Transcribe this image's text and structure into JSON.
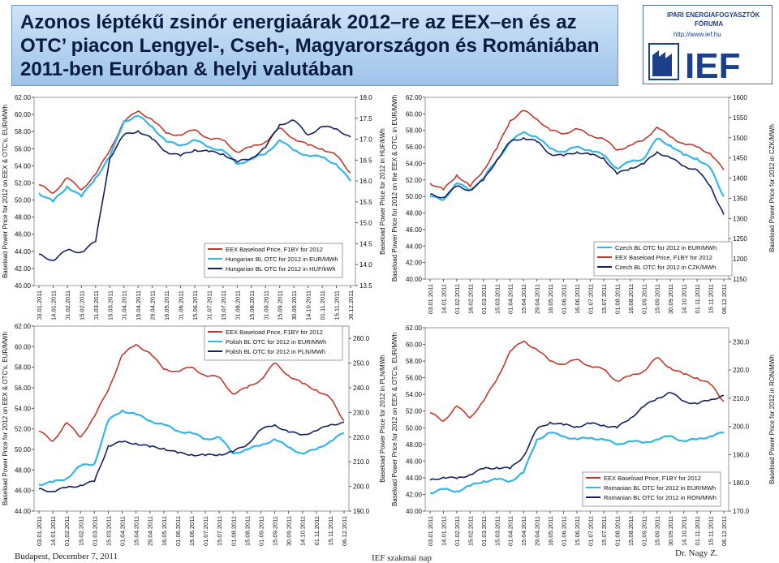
{
  "title": "Azonos léptékű zsinór energiaárak 2012–re az EEX–en és az OTC’ piacon Lengyel-, Cseh-, Magyarországon és Romániában 2011-ben Euróban & helyi valutában",
  "logo": {
    "line1": "IPARI ENERGIAFOGYASZTÓK",
    "line2": "FÓRUMA",
    "url": "http://www.ief.hu",
    "mark": "IEF"
  },
  "footer": {
    "left": "Budapest, December 7, 2011",
    "center": "IEF szakmai nap",
    "right": "Dr. Nagy Z."
  },
  "colors": {
    "eex": "#c0392b",
    "otc_eur": "#35b5e8",
    "otc_local": "#15205e"
  },
  "chart_data": [
    {
      "type": "line",
      "panel": "Hungary",
      "x": [
        "03.01.2011",
        "14.01.2011",
        "01.02.2011",
        "15.02.2011",
        "01.03.2011",
        "15.03.2011",
        "01.04.2011",
        "15.04.2011",
        "29.04.2011",
        "16.05.2011",
        "01.06.2011",
        "15.06.2011",
        "01.07.2011",
        "15.07.2011",
        "01.08.2011",
        "15.08.2011",
        "01.09.2011",
        "15.09.2011",
        "30.09.2011",
        "14.10.2011",
        "01.11.2011",
        "15.11.2011",
        "06.12.2011"
      ],
      "ylabel": "Baseload Power Price for 2012 on EEX & OTC's, EUR/MWh",
      "y2label": "Baseload Power Price for 2012 in HUF/kWh",
      "ylim": [
        40,
        62
      ],
      "y2lim": [
        13.5,
        18.0
      ],
      "yticks": [
        "40.00",
        "42.00",
        "44.00",
        "46.00",
        "48.00",
        "50.00",
        "52.00",
        "54.00",
        "56.00",
        "58.00",
        "60.00",
        "62.00"
      ],
      "y2ticks": [
        "13.5",
        "14.0",
        "14.5",
        "15.0",
        "15.5",
        "16.0",
        "16.5",
        "17.0",
        "17.5",
        "18.0"
      ],
      "legend_position": "lower-center",
      "series": [
        {
          "name": "EEX Baseload Price, F1BY for 2012",
          "axis": "left",
          "color": "#c0392b",
          "values": [
            51.8,
            50.8,
            52.6,
            51.2,
            53.0,
            55.8,
            59.2,
            60.4,
            59.4,
            57.8,
            57.6,
            58.2,
            57.2,
            57.0,
            55.6,
            56.2,
            56.8,
            58.4,
            57.2,
            56.4,
            56.0,
            55.2,
            53.2
          ]
        },
        {
          "name": "Hungarian BL OTC for 2012 in EUR/MWh",
          "axis": "left",
          "color": "#35b5e8",
          "values": [
            50.8,
            49.8,
            51.6,
            50.4,
            52.6,
            55.0,
            59.2,
            59.8,
            58.6,
            56.8,
            56.4,
            57.0,
            56.2,
            55.8,
            54.2,
            54.8,
            55.4,
            57.0,
            55.8,
            55.2,
            55.0,
            54.2,
            52.2
          ]
        },
        {
          "name": "Hungarian BL OTC for 2012 in HUF/kWh",
          "axis": "right",
          "color": "#15205e",
          "values": [
            14.25,
            14.1,
            14.35,
            14.3,
            14.55,
            16.55,
            17.1,
            17.2,
            17.0,
            16.7,
            16.6,
            16.75,
            16.7,
            16.65,
            16.45,
            16.55,
            16.8,
            17.35,
            17.45,
            17.1,
            17.3,
            17.25,
            17.05
          ]
        }
      ]
    },
    {
      "type": "line",
      "panel": "Czech",
      "x": [
        "03.01.2011",
        "14.01.2011",
        "01.02.2011",
        "16.02.2011",
        "01.03.2011",
        "15.03.2011",
        "01.04.2011",
        "15.04.2011",
        "29.04.2011",
        "16.05.2011",
        "01.06.2011",
        "16.06.2011",
        "01.07.2011",
        "15.07.2011",
        "01.08.2011",
        "16.08.2011",
        "01.09.2011",
        "15.09.2011",
        "30.09.2011",
        "14.10.2011",
        "01.11.2011",
        "15.11.2011",
        "06.12.2011"
      ],
      "ylabel": "Baseload Power Price for 2012 on the EEX & OTC, in EUR/MWh",
      "y2label": "Baseload Power Price for 2012 in CZK/MWh",
      "ylim": [
        40,
        62
      ],
      "y2lim": [
        1150,
        1600
      ],
      "yticks": [
        "40.00",
        "42.00",
        "44.00",
        "46.00",
        "48.00",
        "50.00",
        "52.00",
        "54.00",
        "56.00",
        "58.00",
        "60.00",
        "62.00"
      ],
      "y2ticks": [
        "1150",
        "1200",
        "1250",
        "1300",
        "1350",
        "1400",
        "1450",
        "1500",
        "1550",
        "1600"
      ],
      "legend_position": "lower-right",
      "series": [
        {
          "name": "Czech BL OTC for 2012 in EUR/MWh",
          "axis": "left",
          "color": "#35b5e8",
          "values": [
            50.0,
            49.6,
            51.6,
            50.8,
            52.2,
            54.4,
            56.6,
            57.8,
            57.2,
            55.8,
            55.4,
            56.0,
            55.6,
            55.0,
            53.4,
            54.2,
            54.6,
            57.0,
            56.2,
            55.0,
            54.6,
            53.4,
            50.0
          ]
        },
        {
          "name": "EEX Baseload Price, F1BY for 2012",
          "axis": "left",
          "color": "#c0392b",
          "values": [
            51.6,
            50.8,
            52.6,
            51.2,
            53.2,
            55.8,
            59.2,
            60.4,
            59.4,
            58.0,
            57.6,
            58.2,
            57.4,
            57.0,
            55.6,
            56.2,
            56.8,
            58.4,
            57.2,
            56.4,
            56.0,
            55.2,
            53.2
          ]
        },
        {
          "name": "Czech BL OTC for 2012 in CZK/MWh",
          "axis": "right",
          "color": "#15205e",
          "values": [
            1360,
            1352,
            1380,
            1370,
            1395,
            1445,
            1490,
            1500,
            1490,
            1460,
            1455,
            1465,
            1458,
            1450,
            1410,
            1425,
            1435,
            1465,
            1450,
            1430,
            1420,
            1380,
            1310
          ]
        }
      ]
    },
    {
      "type": "line",
      "panel": "Poland",
      "x": [
        "03.01.2011",
        "14.01.2011",
        "01.02.2011",
        "15.02.2011",
        "01.03.2011",
        "15.03.2011",
        "01.04.2011",
        "15.04.2011",
        "29.04.2011",
        "16.05.2011",
        "01.06.2011",
        "15.06.2011",
        "01.07.2011",
        "15.07.2011",
        "01.08.2011",
        "15.08.2011",
        "01.09.2011",
        "15.09.2011",
        "30.09.2011",
        "14.10.2011",
        "01.11.2011",
        "15.11.2011",
        "06.12.2011"
      ],
      "ylabel": "Baseload Power Price for 2012 on EEX & OTC's, EUR/MWh",
      "y2label": "Baseload Power Price for 2012 in PLN/MWh",
      "ylim": [
        44,
        62
      ],
      "y2lim": [
        190,
        265
      ],
      "yticks": [
        "44.00",
        "46.00",
        "48.00",
        "50.00",
        "52.00",
        "54.00",
        "56.00",
        "58.00",
        "60.00",
        "62.00"
      ],
      "y2ticks": [
        "190.0",
        "200.0",
        "210.0",
        "220.0",
        "230.0",
        "240.0",
        "250.0",
        "260.0"
      ],
      "legend_position": "upper-center",
      "series": [
        {
          "name": "EEX Baseload Price, F1BY for 2012",
          "axis": "left",
          "color": "#c0392b",
          "values": [
            51.8,
            50.8,
            52.6,
            51.2,
            53.2,
            55.8,
            59.2,
            60.2,
            59.4,
            57.8,
            57.6,
            58.0,
            57.2,
            57.0,
            55.4,
            56.0,
            56.8,
            58.4,
            57.2,
            56.4,
            55.8,
            55.0,
            52.8
          ]
        },
        {
          "name": "Polish BL OTC for 2012 in EUR/MWh",
          "axis": "left",
          "color": "#35b5e8",
          "values": [
            46.6,
            46.8,
            47.2,
            48.4,
            48.6,
            52.8,
            53.8,
            53.4,
            52.8,
            52.4,
            51.8,
            51.6,
            51.0,
            51.2,
            49.6,
            50.0,
            50.4,
            51.0,
            50.2,
            49.6,
            50.0,
            50.8,
            51.6
          ]
        },
        {
          "name": "Polish BL OTC for 2012 in PLN/MWh",
          "axis": "right",
          "color": "#15205e",
          "values": [
            199.0,
            198.0,
            199.5,
            200.5,
            202.0,
            216.5,
            218.0,
            217.5,
            216.0,
            215.5,
            213.5,
            213.0,
            212.5,
            213.0,
            214.0,
            217.0,
            223.0,
            225.0,
            222.0,
            221.0,
            222.5,
            225.0,
            226.0
          ]
        }
      ]
    },
    {
      "type": "line",
      "panel": "Romania",
      "x": [
        "03.01.2011",
        "14.01.2011",
        "01.02.2011",
        "15.02.2011",
        "01.03.2011",
        "15.03.2011",
        "01.04.2011",
        "15.04.2011",
        "29.04.2011",
        "16.05.2011",
        "01.06.2011",
        "15.06.2011",
        "01.07.2011",
        "15.07.2011",
        "01.08.2011",
        "15.08.2011",
        "01.09.2011",
        "15.09.2011",
        "30.09.2011",
        "14.10.2011",
        "01.11.2011",
        "15.11.2011",
        "06.12.2011"
      ],
      "ylabel": "Baseload Power Price for 2012 on EEX & OTC's, EUR/MWh",
      "y2label": "Baseload Power Price for 2012 in RON/MWh",
      "ylim": [
        40,
        62
      ],
      "y2lim": [
        170,
        235
      ],
      "yticks": [
        "40.00",
        "42.00",
        "44.00",
        "46.00",
        "48.00",
        "50.00",
        "52.00",
        "54.00",
        "56.00",
        "58.00",
        "60.00",
        "62.00"
      ],
      "y2ticks": [
        "170.0",
        "180.0",
        "190.0",
        "200.0",
        "210.0",
        "220.0",
        "230.0"
      ],
      "legend_position": "lower-right",
      "series": [
        {
          "name": "EEX Baseload Price, F1BY for 2012",
          "axis": "left",
          "color": "#c0392b",
          "values": [
            51.8,
            50.8,
            52.6,
            51.2,
            53.2,
            55.8,
            59.2,
            60.4,
            59.4,
            58.0,
            57.6,
            58.2,
            57.4,
            57.0,
            55.6,
            56.2,
            56.8,
            58.4,
            57.2,
            56.4,
            56.0,
            55.2,
            53.2
          ]
        },
        {
          "name": "Romanian BL OTC for 2012 in EUR/MWh",
          "axis": "left",
          "color": "#35b5e8",
          "values": [
            42.2,
            42.6,
            42.4,
            43.0,
            43.6,
            43.8,
            43.6,
            44.6,
            48.6,
            49.4,
            49.0,
            48.6,
            48.8,
            48.6,
            48.0,
            48.4,
            48.2,
            48.6,
            49.0,
            48.4,
            48.6,
            49.0,
            49.4
          ]
        },
        {
          "name": "Romanian BL OTC for 2012 in RON/MWh",
          "axis": "right",
          "color": "#15205e",
          "values": [
            181.0,
            182.0,
            181.5,
            183.0,
            185.0,
            185.5,
            185.0,
            189.5,
            199.0,
            201.5,
            200.5,
            200.0,
            201.0,
            200.5,
            199.5,
            203.0,
            207.0,
            210.0,
            212.0,
            209.0,
            208.0,
            209.5,
            211.0
          ]
        }
      ]
    }
  ]
}
